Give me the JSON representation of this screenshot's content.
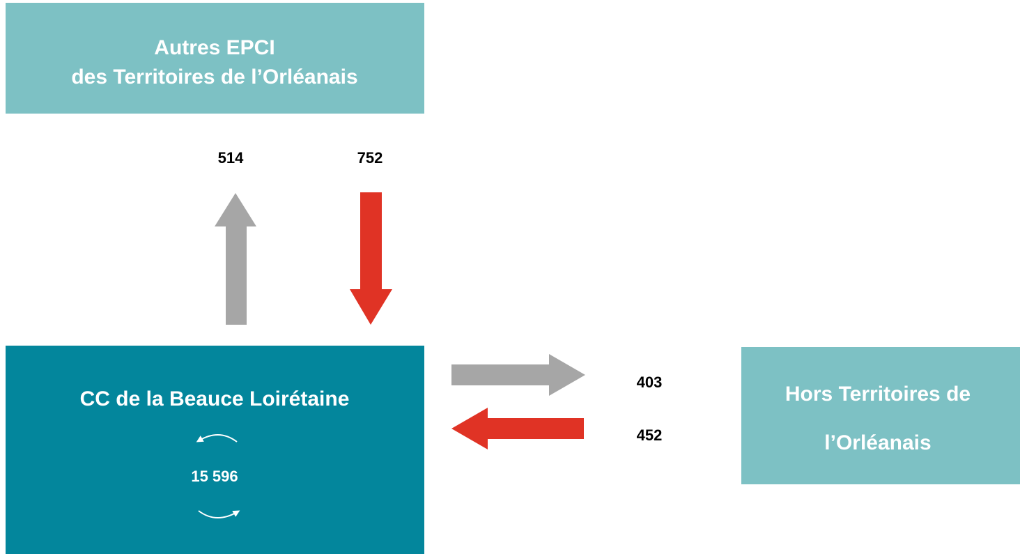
{
  "nodes": [
    {
      "lines": [
        "Autres EPCI",
        "des Territoires de l’Orléanais"
      ]
    },
    {
      "lines": [
        "CC de la Beauce Loirétaine"
      ],
      "internal": "15 596"
    },
    {
      "lines": [
        "Hors Territoires de",
        "l’Orléanais"
      ]
    }
  ],
  "flows": [
    514,
    752,
    403,
    452
  ]
}
